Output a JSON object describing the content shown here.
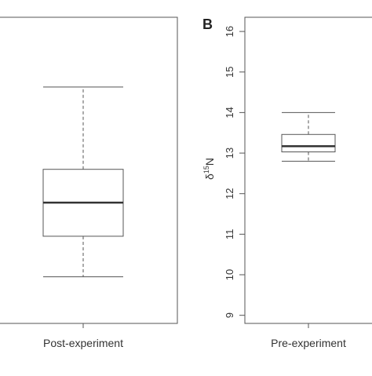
{
  "chart_data": [
    {
      "panel_label": "",
      "type": "box",
      "categories": [
        "Post-experiment"
      ],
      "boxes": [
        {
          "category": "Post-experiment",
          "whisker_low": 9.95,
          "q1": 10.95,
          "median": 11.78,
          "q3": 12.6,
          "whisker_high": 14.63
        }
      ],
      "ylim": [
        8.8,
        16.35
      ],
      "yticks": [],
      "ylabel": "",
      "xlabel": ""
    },
    {
      "panel_label": "B",
      "type": "box",
      "categories": [
        "Pre-experiment"
      ],
      "boxes": [
        {
          "category": "Pre-experiment",
          "whisker_low": 12.8,
          "q1": 13.03,
          "median": 13.17,
          "q3": 13.46,
          "whisker_high": 14.0
        }
      ],
      "ylim": [
        8.8,
        16.35
      ],
      "yticks": [
        "9",
        "10",
        "11",
        "12",
        "13",
        "14",
        "15",
        "16"
      ],
      "ylabel": "δ15N",
      "xlabel": ""
    }
  ]
}
